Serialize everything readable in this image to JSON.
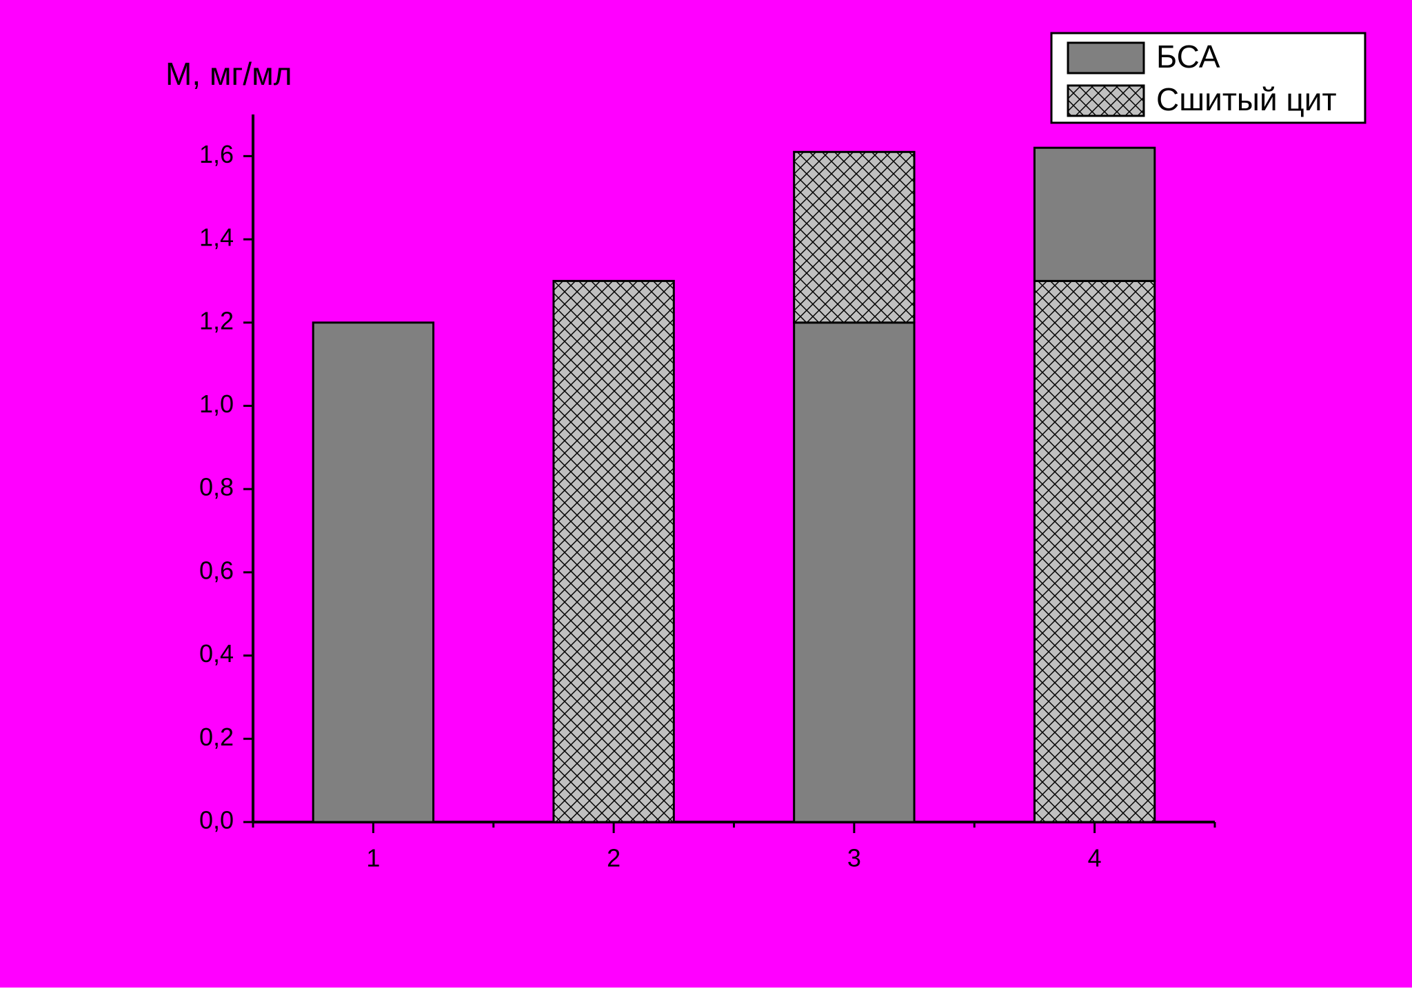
{
  "chart_data": {
    "type": "stacked_bar",
    "y_label": "M, мг/мл",
    "categories": [
      "1",
      "2",
      "3",
      "4"
    ],
    "series": [
      {
        "name": "БСА",
        "color": "#808080",
        "hatch": "none",
        "values": [
          1.2,
          null,
          1.2,
          0.32
        ]
      },
      {
        "name": "Сшитый цит",
        "color": "#c0c0c0",
        "hatch": "crosshatch",
        "values": [
          null,
          1.3,
          0.41,
          1.3
        ]
      }
    ],
    "stack_order": [
      [
        0
      ],
      [
        1
      ],
      [
        0,
        1
      ],
      [
        1,
        0
      ]
    ],
    "ylim": [
      0,
      1.7
    ],
    "yticks": [
      {
        "value": 0,
        "label": "0,0"
      },
      {
        "value": 0.2,
        "label": "0,2"
      },
      {
        "value": 0.4,
        "label": "0,4"
      },
      {
        "value": 0.6,
        "label": "0,6"
      },
      {
        "value": 0.8,
        "label": "0,8"
      },
      {
        "value": 1.0,
        "label": "1,0"
      },
      {
        "value": 1.2,
        "label": "1,2"
      },
      {
        "value": 1.4,
        "label": "1,4"
      },
      {
        "value": 1.6,
        "label": "1,6"
      }
    ],
    "legend": "top-right",
    "background": "#ff00ff"
  }
}
